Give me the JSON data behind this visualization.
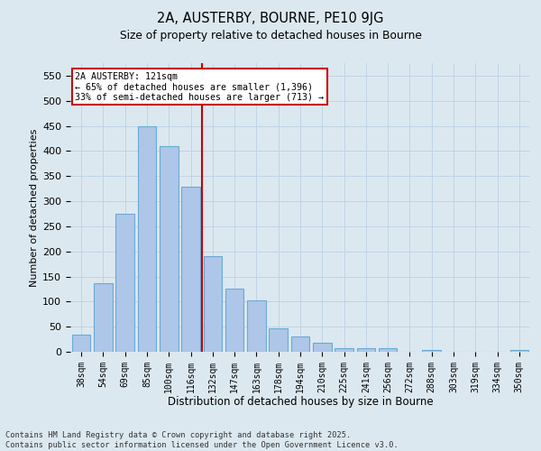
{
  "title1": "2A, AUSTERBY, BOURNE, PE10 9JG",
  "title2": "Size of property relative to detached houses in Bourne",
  "xlabel": "Distribution of detached houses by size in Bourne",
  "ylabel": "Number of detached properties",
  "categories": [
    "38sqm",
    "54sqm",
    "69sqm",
    "85sqm",
    "100sqm",
    "116sqm",
    "132sqm",
    "147sqm",
    "163sqm",
    "178sqm",
    "194sqm",
    "210sqm",
    "225sqm",
    "241sqm",
    "256sqm",
    "272sqm",
    "288sqm",
    "303sqm",
    "319sqm",
    "334sqm",
    "350sqm"
  ],
  "values": [
    35,
    137,
    275,
    450,
    410,
    328,
    190,
    125,
    102,
    46,
    30,
    18,
    8,
    8,
    8,
    0,
    3,
    0,
    0,
    0,
    3
  ],
  "bar_color": "#aec6e8",
  "bar_edge_color": "#6aaad4",
  "vline_x": 5.5,
  "vline_color": "#cc0000",
  "annotation_text": "2A AUSTERBY: 121sqm\n← 65% of detached houses are smaller (1,396)\n33% of semi-detached houses are larger (713) →",
  "annotation_box_color": "#ffffff",
  "annotation_box_edge": "#cc0000",
  "grid_color": "#c0d4e4",
  "bg_color": "#dce8f0",
  "footer_line1": "Contains HM Land Registry data © Crown copyright and database right 2025.",
  "footer_line2": "Contains public sector information licensed under the Open Government Licence v3.0.",
  "ylim": [
    0,
    575
  ],
  "yticks": [
    0,
    50,
    100,
    150,
    200,
    250,
    300,
    350,
    400,
    450,
    500,
    550
  ]
}
